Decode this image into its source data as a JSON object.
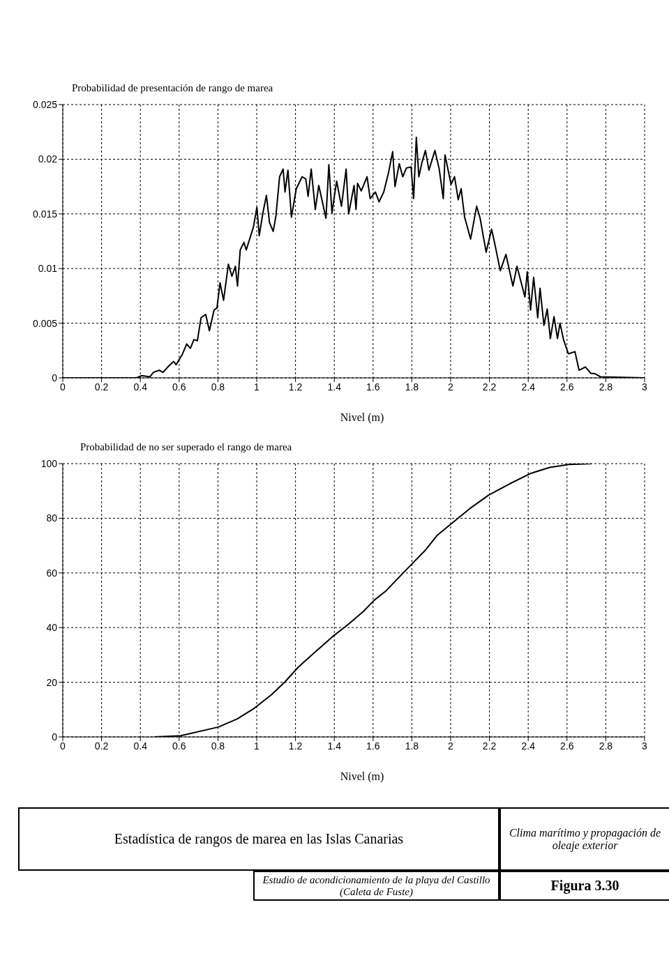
{
  "chart_data": [
    {
      "type": "line",
      "title": "Probabilidad de presentación de rango de marea",
      "xlabel": "Nivel (m)",
      "xlim": [
        0,
        3
      ],
      "xticks": [
        0,
        0.2,
        0.4,
        0.6,
        0.8,
        1,
        1.2,
        1.4,
        1.6,
        1.8,
        2,
        2.2,
        2.4,
        2.6,
        2.8,
        3
      ],
      "ylim": [
        0,
        0.025
      ],
      "yticks": [
        0,
        0.005,
        0.01,
        0.015,
        0.02,
        0.025
      ],
      "grid": true,
      "x": [
        0,
        0.38,
        0.406,
        0.45,
        0.467,
        0.498,
        0.517,
        0.547,
        0.572,
        0.584,
        0.615,
        0.639,
        0.658,
        0.676,
        0.694,
        0.713,
        0.737,
        0.756,
        0.78,
        0.795,
        0.811,
        0.829,
        0.854,
        0.872,
        0.89,
        0.901,
        0.915,
        0.934,
        0.946,
        0.983,
        1.001,
        1.013,
        1.032,
        1.05,
        1.066,
        1.085,
        1.099,
        1.118,
        1.136,
        1.146,
        1.161,
        1.179,
        1.204,
        1.234,
        1.253,
        1.265,
        1.281,
        1.302,
        1.32,
        1.357,
        1.372,
        1.388,
        1.412,
        1.437,
        1.461,
        1.474,
        1.502,
        1.512,
        1.52,
        1.539,
        1.569,
        1.585,
        1.612,
        1.631,
        1.655,
        1.68,
        1.701,
        1.713,
        1.735,
        1.753,
        1.772,
        1.796,
        1.809,
        1.823,
        1.836,
        1.852,
        1.87,
        1.888,
        1.919,
        1.941,
        1.962,
        1.971,
        2.002,
        2.02,
        2.039,
        2.054,
        2.072,
        2.103,
        2.134,
        2.152,
        2.183,
        2.211,
        2.226,
        2.256,
        2.285,
        2.321,
        2.342,
        2.383,
        2.395,
        2.412,
        2.428,
        2.449,
        2.461,
        2.481,
        2.498,
        2.514,
        2.533,
        2.551,
        2.564,
        2.582,
        2.607,
        2.641,
        2.662,
        2.695,
        2.723,
        2.741,
        2.772,
        3
      ],
      "series": [
        {
          "color": "#000000",
          "values": [
            0,
            0,
            0.0002,
            0.0001,
            0.0005,
            0.0007,
            0.0005,
            0.0011,
            0.0015,
            0.0012,
            0.0021,
            0.0031,
            0.0027,
            0.0035,
            0.0034,
            0.0055,
            0.0058,
            0.0043,
            0.0062,
            0.0064,
            0.0087,
            0.0071,
            0.0104,
            0.0093,
            0.0102,
            0.0084,
            0.0117,
            0.0124,
            0.0117,
            0.0138,
            0.0156,
            0.013,
            0.0151,
            0.0167,
            0.0142,
            0.0134,
            0.0148,
            0.0184,
            0.0191,
            0.017,
            0.019,
            0.0147,
            0.0173,
            0.0184,
            0.0182,
            0.0166,
            0.0191,
            0.0154,
            0.0176,
            0.0146,
            0.0195,
            0.0151,
            0.018,
            0.0157,
            0.0191,
            0.015,
            0.0176,
            0.0154,
            0.0178,
            0.0171,
            0.0184,
            0.0164,
            0.017,
            0.0161,
            0.017,
            0.0188,
            0.0207,
            0.0175,
            0.0196,
            0.0184,
            0.0192,
            0.0193,
            0.0164,
            0.022,
            0.0184,
            0.0197,
            0.0208,
            0.019,
            0.0208,
            0.0191,
            0.0164,
            0.0204,
            0.0177,
            0.0184,
            0.0163,
            0.0173,
            0.0147,
            0.0127,
            0.0157,
            0.0146,
            0.0115,
            0.0136,
            0.0124,
            0.0098,
            0.0113,
            0.0084,
            0.0102,
            0.0074,
            0.0097,
            0.0062,
            0.0092,
            0.0055,
            0.0082,
            0.0048,
            0.0063,
            0.0036,
            0.0056,
            0.0036,
            0.005,
            0.0035,
            0.0022,
            0.0024,
            0.0007,
            0.001,
            0.0004,
            0.0004,
            0.0001,
            0
          ]
        }
      ]
    },
    {
      "type": "line",
      "title": "Probabilidad de no ser superado el rango de marea",
      "xlabel": "Nivel (m)",
      "xlim": [
        0,
        3
      ],
      "xticks": [
        0,
        0.2,
        0.4,
        0.6,
        0.8,
        1,
        1.2,
        1.4,
        1.6,
        1.8,
        2,
        2.2,
        2.4,
        2.6,
        2.8,
        3
      ],
      "ylim": [
        0,
        100
      ],
      "yticks": [
        0,
        20,
        40,
        60,
        80,
        100
      ],
      "grid": true,
      "x": [
        0.472,
        0.605,
        0.802,
        0.9,
        0.988,
        1.077,
        1.145,
        1.214,
        1.292,
        1.391,
        1.469,
        1.548,
        1.607,
        1.666,
        1.735,
        1.803,
        1.872,
        1.931,
        2.0,
        2.098,
        2.196,
        2.304,
        2.412,
        2.51,
        2.609,
        2.727
      ],
      "series": [
        {
          "color": "#000000",
          "values": [
            0,
            0.4,
            3.6,
            6.6,
            10.5,
            15.5,
            20.1,
            25.5,
            30.5,
            36.7,
            41,
            45.8,
            50.1,
            53.4,
            58.5,
            63.5,
            68.5,
            73.8,
            77.8,
            83.5,
            88.5,
            92.6,
            96.4,
            98.6,
            99.7,
            100
          ]
        }
      ],
      "annotations": [
        "Estadística de rangos de marea en las Islas Canarias",
        "Clima marítimo y propagación de oleaje exterior",
        "Estudio de acondicionamiento de la playa del Castillo (Caleta de Fuste)",
        "Figura 3.30"
      ]
    }
  ]
}
